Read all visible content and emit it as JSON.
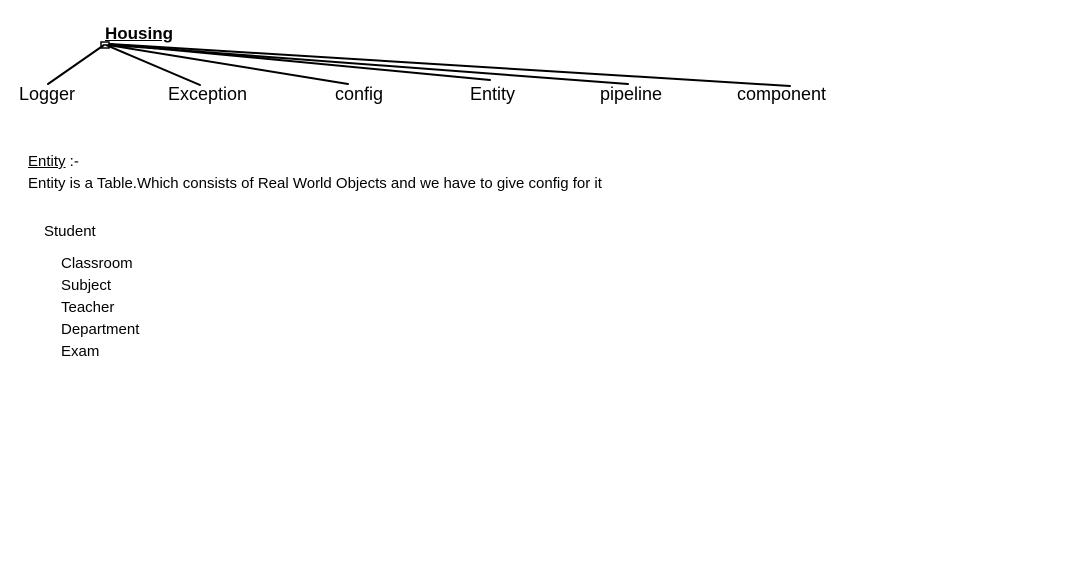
{
  "diagram": {
    "root": "Housing",
    "children": [
      "Logger",
      "Exception",
      "config",
      "Entity",
      "pipeline",
      "component"
    ]
  },
  "notes": {
    "entity_heading": "Entity",
    "entity_heading_suffix": " :-",
    "entity_description": "Entity is a Table.Which consists of Real World Objects and we have to give config for it",
    "example_parent": "Student",
    "example_items": [
      "Classroom",
      "Subject",
      "Teacher",
      "Department",
      "Exam"
    ]
  }
}
